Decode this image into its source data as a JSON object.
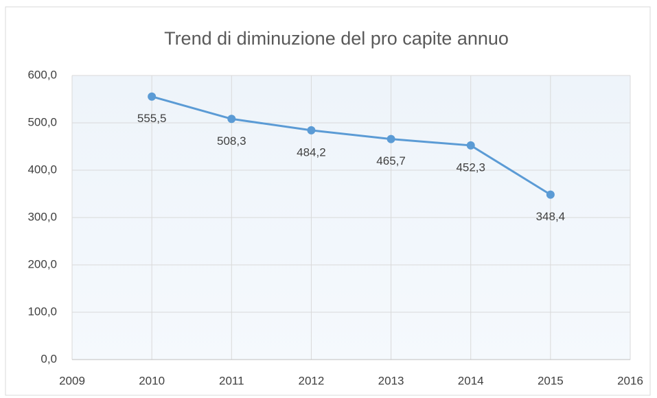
{
  "chart_data": {
    "type": "line",
    "title": "Trend di diminuzione del pro capite annuo",
    "x": [
      2010,
      2011,
      2012,
      2013,
      2014,
      2015
    ],
    "values": [
      555.5,
      508.3,
      484.2,
      465.7,
      452.3,
      348.4
    ],
    "value_labels": [
      "555,5",
      "508,3",
      "484,2",
      "465,7",
      "452,3",
      "348,4"
    ],
    "color": "#5b9bd5",
    "xlim": [
      2009,
      2016
    ],
    "xticks": [
      2009,
      2010,
      2011,
      2012,
      2013,
      2014,
      2015,
      2016
    ],
    "ylim": [
      0,
      600
    ],
    "yticks": [
      {
        "value": 0,
        "label": "0,0"
      },
      {
        "value": 100,
        "label": "100,0"
      },
      {
        "value": 200,
        "label": "200,0"
      },
      {
        "value": 300,
        "label": "300,0"
      },
      {
        "value": 400,
        "label": "400,0"
      },
      {
        "value": 500,
        "label": "500,0"
      },
      {
        "value": 600,
        "label": "600,0"
      }
    ],
    "grid": true
  }
}
